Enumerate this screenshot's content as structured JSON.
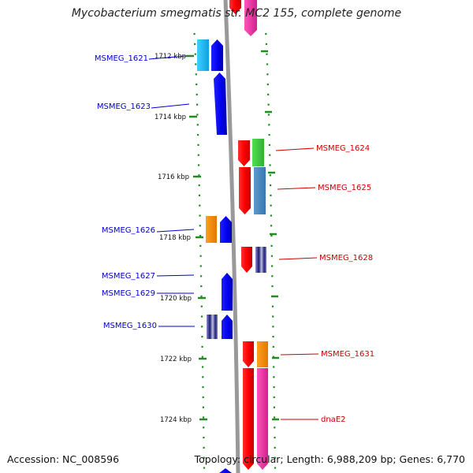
{
  "title": "Mycobacterium smegmatis str. MC2 155, complete genome",
  "accession": "Accession: NC_008596",
  "info": "Topology: circular; Length: 6,988,209 bp; Genes: 6,770",
  "colors": {
    "backbone": "#999999",
    "tick": "#228b22",
    "left_label": "#0000cc",
    "right_label": "#cc0000"
  },
  "ruler": {
    "unit": "kbp",
    "ticks": [
      {
        "kbp": 1712,
        "label": "1712 kbp"
      },
      {
        "kbp": 1714,
        "label": "1714 kbp"
      },
      {
        "kbp": 1716,
        "label": "1716 kbp"
      },
      {
        "kbp": 1718,
        "label": "1718 kbp"
      },
      {
        "kbp": 1720,
        "label": "1720 kbp"
      },
      {
        "kbp": 1722,
        "label": "1722 kbp"
      },
      {
        "kbp": 1724,
        "label": "1724 kbp"
      }
    ]
  },
  "left_labels": [
    "MSMEG_1621",
    "MSMEG_1623",
    "MSMEG_1626",
    "MSMEG_1627",
    "MSMEG_1629",
    "MSMEG_1630"
  ],
  "right_labels": [
    "MSMEG_1624",
    "MSMEG_1625",
    "MSMEG_1628",
    "MSMEG_1631",
    "dnaE2"
  ]
}
